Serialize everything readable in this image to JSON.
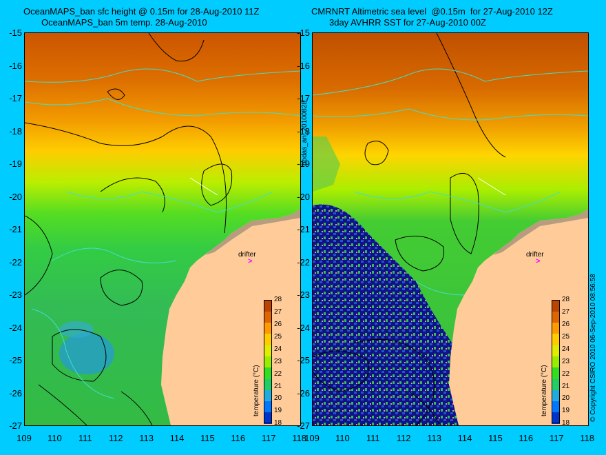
{
  "left_title": {
    "line1": "OceanMAPS_ban sfc height @ 0.15m for 28-Aug-2010 11Z",
    "line2": "OceanMAPS_ban 5m temp. 28-Aug-2010"
  },
  "right_title": {
    "line1": "CMRNRT Altimetric sea level  @0.15m  for 27-Aug-2010 12Z",
    "line2": "3day AVHRR SST for 27-Aug-2010 00Z"
  },
  "y_ticks": [
    "-15",
    "-16",
    "-17",
    "-18",
    "-19",
    "-20",
    "-21",
    "-22",
    "-23",
    "-24",
    "-25",
    "-26",
    "-27"
  ],
  "x_ticks": [
    "109",
    "110",
    "111",
    "112",
    "113",
    "114",
    "115",
    "116",
    "117",
    "118"
  ],
  "colorbar": {
    "label": "temperature (°C)",
    "ticks": [
      "28",
      "27",
      "26",
      "25",
      "24",
      "23",
      "22",
      "21",
      "20",
      "19",
      "18"
    ],
    "colors": [
      "#000080",
      "#0033cc",
      "#0077ff",
      "#22aadd",
      "#22cc66",
      "#33dd22",
      "#99ee00",
      "#ddee00",
      "#ffcc00",
      "#ff9900",
      "#dd6600",
      "#bb4400"
    ]
  },
  "drifter_label": "drifter",
  "drifter_mark": ">",
  "side_text_center": "bodas_an_20100828",
  "side_text_right": "© Copyright CSIRO 2010    06-Sep-2010 08:56:58",
  "colors": {
    "background": "#00ccff",
    "land": "#ffcc99",
    "warm": "#cc5a00",
    "cool": "#33cc33"
  }
}
